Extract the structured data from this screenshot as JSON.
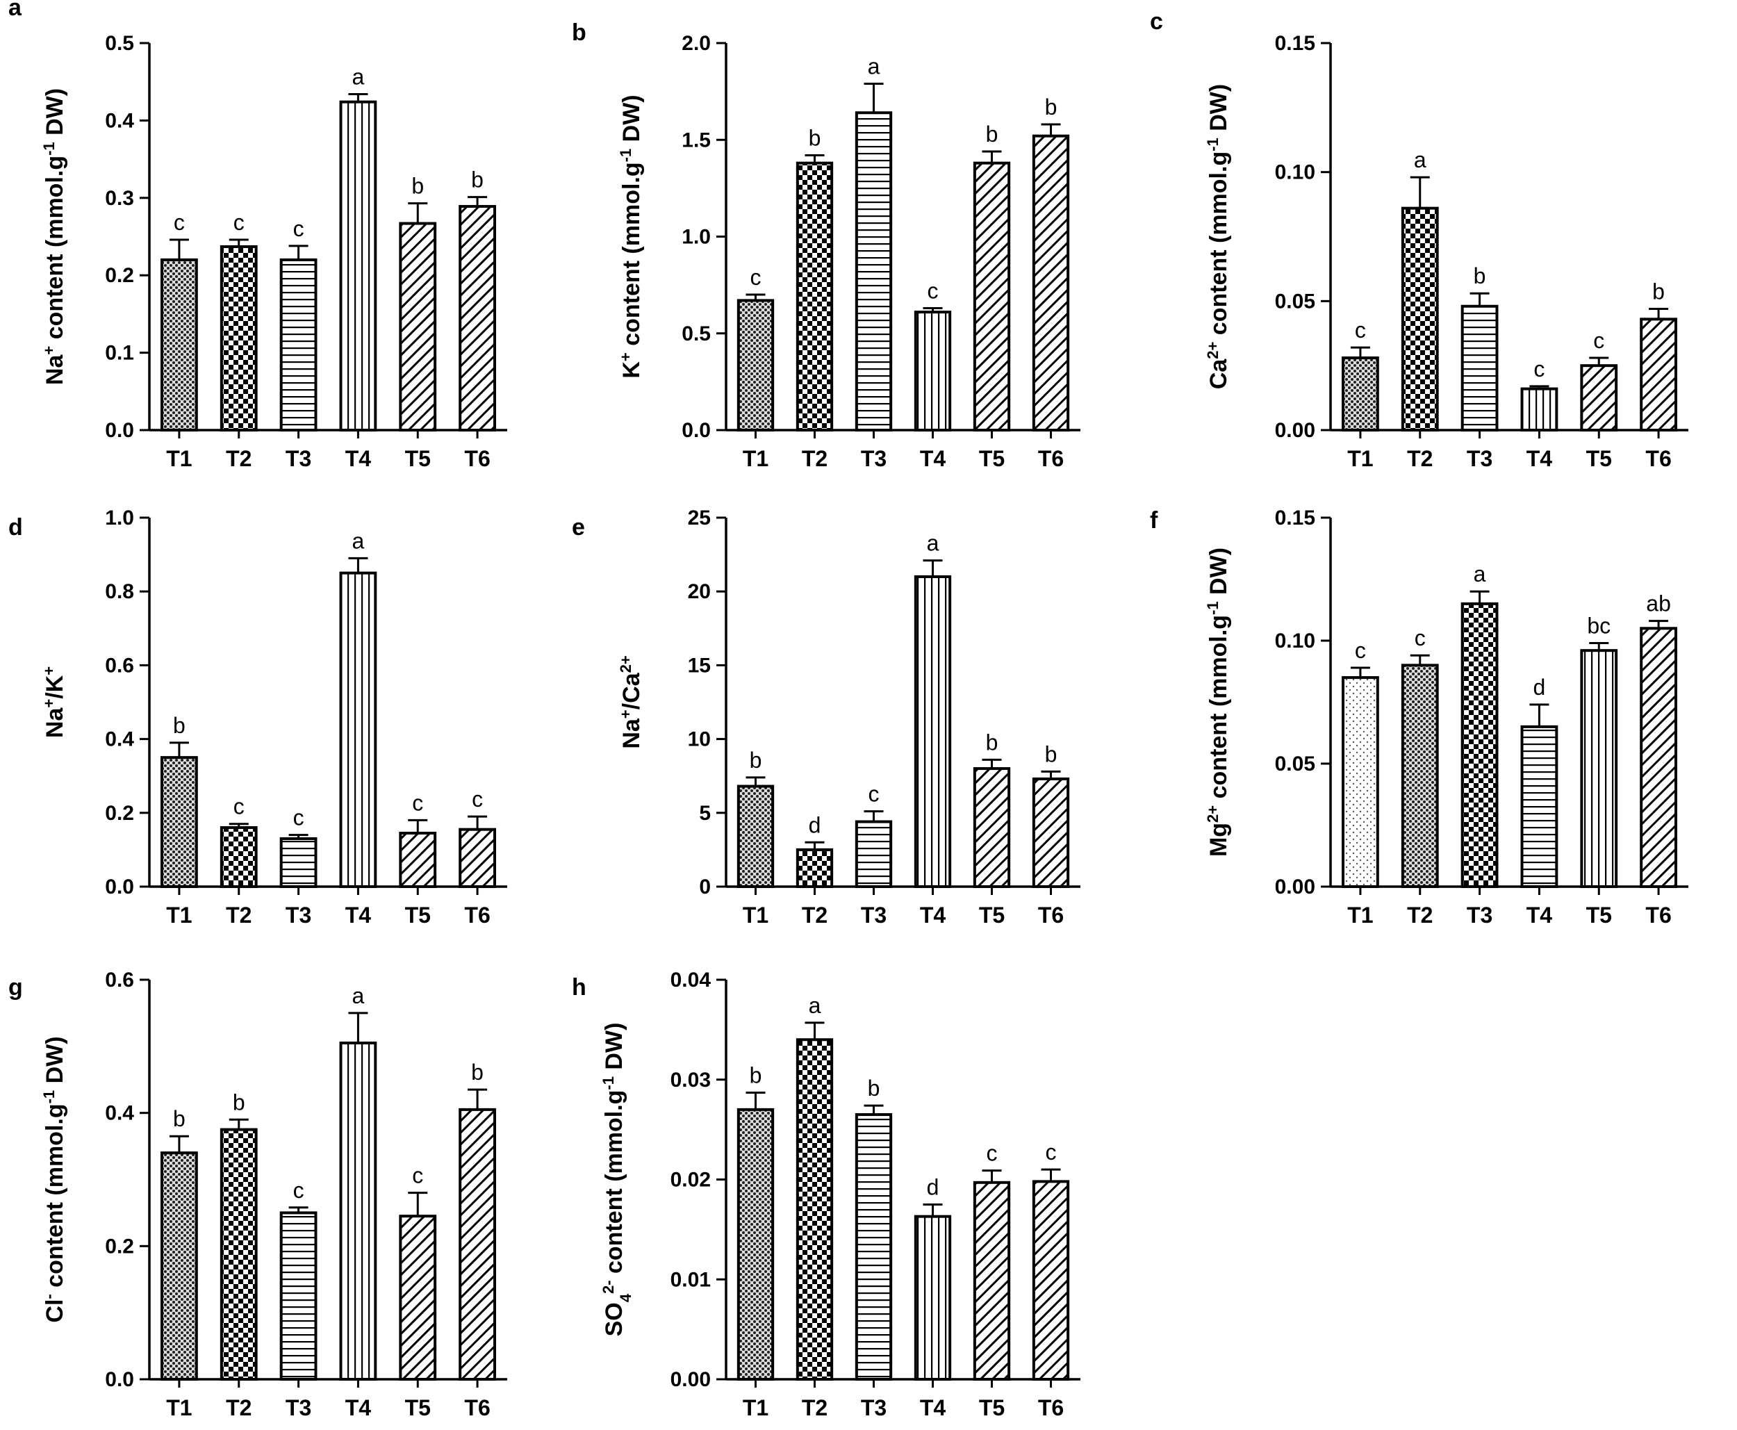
{
  "figure": {
    "categories": [
      "T1",
      "T2",
      "T3",
      "T4",
      "T5",
      "T6"
    ]
  },
  "chart_data": [
    {
      "type": "bar",
      "panel": "a",
      "ylabel": "Na⁺ content (mmol.g⁻¹ DW)",
      "ylim": [
        0,
        0.5
      ],
      "yticks": [
        "0.0",
        "0.1",
        "0.2",
        "0.3",
        "0.4",
        "0.5"
      ],
      "categories": [
        "T1",
        "T2",
        "T3",
        "T4",
        "T5",
        "T6"
      ],
      "values": [
        0.22,
        0.237,
        0.22,
        0.424,
        0.267,
        0.289
      ],
      "errors": [
        0.026,
        0.009,
        0.018,
        0.01,
        0.026,
        0.012
      ],
      "letters": [
        "c",
        "c",
        "c",
        "a",
        "b",
        "b"
      ],
      "patterns": [
        "dots",
        "checker",
        "hlines",
        "vlines",
        "diag",
        "diag"
      ]
    },
    {
      "type": "bar",
      "panel": "b",
      "ylabel": "K⁺ content (mmol.g⁻¹ DW)",
      "ylim": [
        0,
        2.0
      ],
      "yticks": [
        "0.0",
        "0.5",
        "1.0",
        "1.5",
        "2.0"
      ],
      "categories": [
        "T1",
        "T2",
        "T3",
        "T4",
        "T5",
        "T6"
      ],
      "values": [
        0.67,
        1.38,
        1.64,
        0.61,
        1.38,
        1.52
      ],
      "errors": [
        0.03,
        0.04,
        0.15,
        0.02,
        0.06,
        0.06
      ],
      "letters": [
        "c",
        "b",
        "a",
        "c",
        "b",
        "b"
      ],
      "patterns": [
        "dots",
        "checker",
        "hlines",
        "vlines",
        "diag",
        "diag"
      ]
    },
    {
      "type": "bar",
      "panel": "c",
      "ylabel": "Ca²⁺ content (mmol.g⁻¹ DW)",
      "ylim": [
        0,
        0.15
      ],
      "yticks": [
        "0.00",
        "0.05",
        "0.10",
        "0.15"
      ],
      "categories": [
        "T1",
        "T2",
        "T3",
        "T4",
        "T5",
        "T6"
      ],
      "values": [
        0.028,
        0.086,
        0.048,
        0.016,
        0.025,
        0.043
      ],
      "errors": [
        0.004,
        0.012,
        0.005,
        0.001,
        0.003,
        0.004
      ],
      "letters": [
        "c",
        "a",
        "b",
        "c",
        "c",
        "b"
      ],
      "patterns": [
        "dots",
        "checker",
        "hlines",
        "vlines",
        "diag",
        "diag"
      ]
    },
    {
      "type": "bar",
      "panel": "d",
      "ylabel": "Na⁺/K⁺",
      "ylim": [
        0,
        1.0
      ],
      "yticks": [
        "0.0",
        "0.2",
        "0.4",
        "0.6",
        "0.8",
        "1.0"
      ],
      "categories": [
        "T1",
        "T2",
        "T3",
        "T4",
        "T5",
        "T6"
      ],
      "values": [
        0.35,
        0.16,
        0.13,
        0.85,
        0.145,
        0.155
      ],
      "errors": [
        0.04,
        0.01,
        0.01,
        0.04,
        0.035,
        0.035
      ],
      "letters": [
        "b",
        "c",
        "c",
        "a",
        "c",
        "c"
      ],
      "patterns": [
        "dots",
        "checker",
        "hlines",
        "vlines",
        "diag",
        "diag"
      ]
    },
    {
      "type": "bar",
      "panel": "e",
      "ylabel": "Na⁺/Ca²⁺",
      "ylim": [
        0,
        25
      ],
      "yticks": [
        "0",
        "5",
        "10",
        "15",
        "20",
        "25"
      ],
      "categories": [
        "T1",
        "T2",
        "T3",
        "T4",
        "T5",
        "T6"
      ],
      "values": [
        6.8,
        2.5,
        4.4,
        21.0,
        8.0,
        7.3
      ],
      "errors": [
        0.6,
        0.5,
        0.7,
        1.1,
        0.6,
        0.5
      ],
      "letters": [
        "b",
        "d",
        "c",
        "a",
        "b",
        "b"
      ],
      "patterns": [
        "dots",
        "checker",
        "hlines",
        "vlines",
        "diag",
        "diag"
      ]
    },
    {
      "type": "bar",
      "panel": "f",
      "ylabel": "Mg²⁺ content (mmol.g⁻¹ DW)",
      "ylim": [
        0,
        0.15
      ],
      "yticks": [
        "0.00",
        "0.05",
        "0.10",
        "0.15"
      ],
      "categories": [
        "T1",
        "T2",
        "T3",
        "T4",
        "T5",
        "T6"
      ],
      "values": [
        0.085,
        0.09,
        0.115,
        0.065,
        0.096,
        0.105
      ],
      "errors": [
        0.004,
        0.004,
        0.005,
        0.009,
        0.003,
        0.003
      ],
      "letters": [
        "c",
        "c",
        "a",
        "d",
        "bc",
        "ab"
      ],
      "patterns": [
        "finedots",
        "dots",
        "checker",
        "hlines",
        "vlines",
        "diag"
      ]
    },
    {
      "type": "bar",
      "panel": "g",
      "ylabel": "Cl⁻ content (mmol.g⁻¹ DW)",
      "ylim": [
        0,
        0.6
      ],
      "yticks": [
        "0.0",
        "0.2",
        "0.4",
        "0.6"
      ],
      "categories": [
        "T1",
        "T2",
        "T3",
        "T4",
        "T5",
        "T6"
      ],
      "values": [
        0.34,
        0.375,
        0.25,
        0.505,
        0.245,
        0.405
      ],
      "errors": [
        0.025,
        0.015,
        0.008,
        0.045,
        0.035,
        0.03
      ],
      "letters": [
        "b",
        "b",
        "c",
        "a",
        "c",
        "b"
      ],
      "patterns": [
        "dots",
        "checker",
        "hlines",
        "vlines",
        "diag",
        "diag"
      ]
    },
    {
      "type": "bar",
      "panel": "h",
      "ylabel": "SO₄²⁻ content (mmol.g⁻¹ DW)",
      "ylim": [
        0,
        0.04
      ],
      "yticks": [
        "0.00",
        "0.01",
        "0.02",
        "0.03",
        "0.04"
      ],
      "categories": [
        "T1",
        "T2",
        "T3",
        "T4",
        "T5",
        "T6"
      ],
      "values": [
        0.027,
        0.034,
        0.0265,
        0.0163,
        0.0197,
        0.0198
      ],
      "errors": [
        0.0017,
        0.0017,
        0.0009,
        0.0012,
        0.0012,
        0.0012
      ],
      "letters": [
        "b",
        "a",
        "b",
        "d",
        "c",
        "c"
      ],
      "patterns": [
        "dots",
        "checker",
        "hlines",
        "vlines",
        "diag",
        "diag"
      ]
    }
  ]
}
